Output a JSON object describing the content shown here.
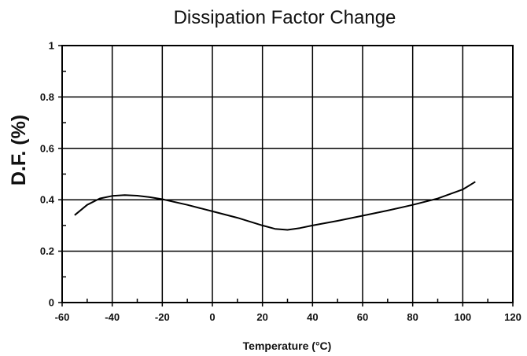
{
  "chart_data": {
    "type": "line",
    "title": "Dissipation Factor Change",
    "xlabel": "Temperature (°C)",
    "ylabel": "D.F. (%)",
    "xlim": [
      -60,
      120
    ],
    "ylim": [
      0,
      1
    ],
    "xticks": [
      -60,
      -40,
      -20,
      0,
      20,
      40,
      60,
      80,
      100,
      120
    ],
    "xtick_labels": [
      "-60",
      "-40",
      "-20",
      "0",
      "20",
      "40",
      "60",
      "80",
      "100",
      "120"
    ],
    "yticks": [
      0,
      0.2,
      0.4,
      0.6,
      0.8,
      1
    ],
    "ytick_labels": [
      "0",
      "0.2",
      "0.4",
      "0.6",
      "0.8",
      "1"
    ],
    "grid": true,
    "legend": "none",
    "series": [
      {
        "color": "#000000",
        "x": [
          -55,
          -50,
          -45,
          -40,
          -35,
          -30,
          -25,
          -20,
          -10,
          0,
          10,
          20,
          25,
          30,
          35,
          40,
          50,
          60,
          70,
          80,
          90,
          100,
          105
        ],
        "y": [
          0.34,
          0.38,
          0.405,
          0.415,
          0.418,
          0.416,
          0.41,
          0.402,
          0.38,
          0.355,
          0.33,
          0.3,
          0.287,
          0.283,
          0.29,
          0.3,
          0.318,
          0.338,
          0.358,
          0.38,
          0.405,
          0.44,
          0.47
        ]
      }
    ]
  }
}
